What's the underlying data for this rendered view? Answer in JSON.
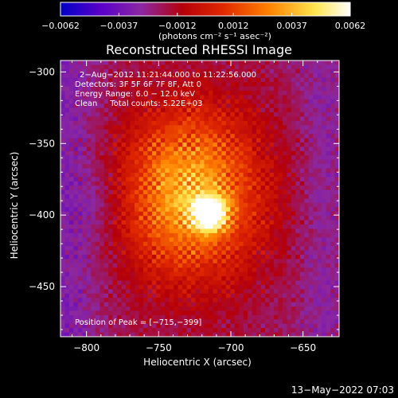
{
  "chart_data": {
    "type": "heatmap",
    "title": "Reconstructed RHESSI Image",
    "xlabel": "Heliocentric X (arcsec)",
    "ylabel": "Heliocentric Y (arcsec)",
    "xlim": [
      -818,
      -625
    ],
    "ylim": [
      -485,
      -292
    ],
    "x_ticks": [
      -800,
      -750,
      -700,
      -650
    ],
    "x_tick_labels": [
      "−800",
      "−750",
      "−700",
      "−650"
    ],
    "y_ticks": [
      -300,
      -350,
      -400,
      -450
    ],
    "y_tick_labels": [
      "−300",
      "−350",
      "−400",
      "−450"
    ],
    "colorbar": {
      "min": -0.0062,
      "max": 0.0062,
      "ticks": [
        -0.0062,
        -0.0037,
        -0.0012,
        0.0012,
        0.0037,
        0.0062
      ],
      "tick_labels": [
        "−0.0062",
        "−0.0037",
        "−0.0012",
        "0.0012",
        "0.0037",
        "0.0062"
      ],
      "unit_label": "(photons cm⁻² s⁻¹ asec⁻²)",
      "colormap_stops": [
        "#0000c8",
        "#5a00c8",
        "#8c28a0",
        "#b4000a",
        "#e02800",
        "#ff8200",
        "#ffe650",
        "#ffffff"
      ]
    },
    "annotation_lines": [
      "2−Aug−2012 11:21:44.000 to 11:22:56.000",
      "Detectors: 3F 5F 6F 7F 8F, Att 0",
      "Energy Range: 6.0 − 12.0 keV",
      "Clean     Total counts: 5.22E+03"
    ],
    "peak_label": "Position of Peak = [−715,−399]",
    "peak": {
      "x": -715,
      "y": -399
    },
    "grid": false,
    "legend": "none"
  },
  "footer": {
    "timestamp": "13−May−2022 07:03"
  }
}
